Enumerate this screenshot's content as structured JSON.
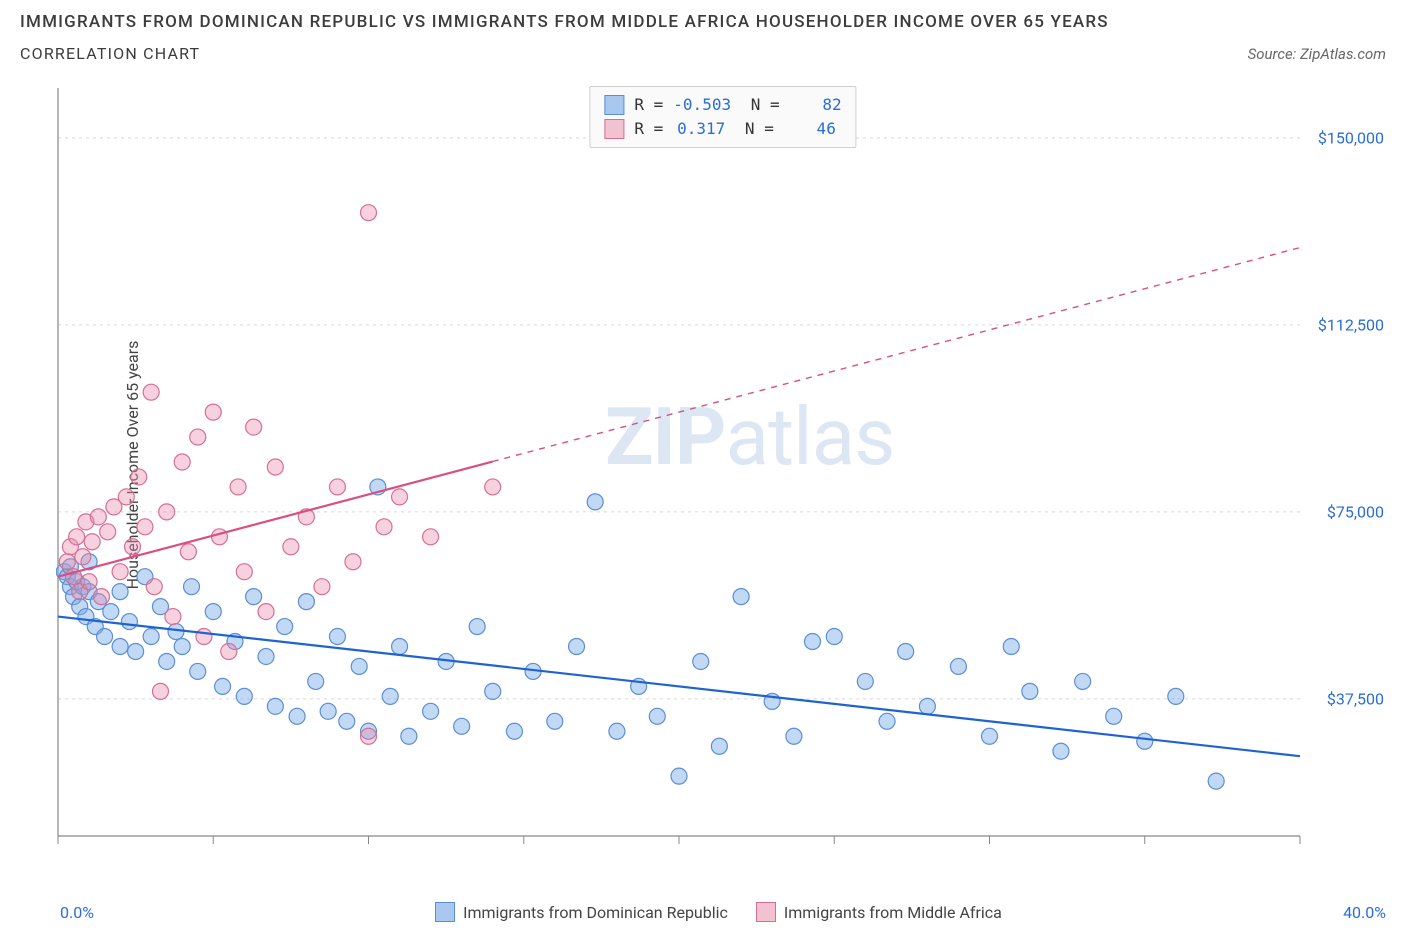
{
  "title": "IMMIGRANTS FROM DOMINICAN REPUBLIC VS IMMIGRANTS FROM MIDDLE AFRICA HOUSEHOLDER INCOME OVER 65 YEARS",
  "subtitle": "CORRELATION CHART",
  "source_label": "Source:",
  "source_value": "ZipAtlas.com",
  "watermark_bold": "ZIP",
  "watermark_rest": "atlas",
  "y_axis_label": "Householder Income Over 65 years",
  "chart": {
    "type": "scatter",
    "background_color": "#ffffff",
    "grid_color": "#d8d8d8",
    "axis_color": "#888888",
    "xlim": [
      0,
      40
    ],
    "ylim": [
      10000,
      160000
    ],
    "x_min_label": "0.0%",
    "x_max_label": "40.0%",
    "x_ticks": [
      0,
      5,
      10,
      15,
      20,
      25,
      30,
      35,
      40
    ],
    "y_ticks": [
      {
        "v": 37500,
        "label": "$37,500"
      },
      {
        "v": 75000,
        "label": "$75,000"
      },
      {
        "v": 112500,
        "label": "$112,500"
      },
      {
        "v": 150000,
        "label": "$150,000"
      }
    ],
    "marker_radius": 8,
    "marker_stroke_width": 1.2,
    "trend_line_width": 2.2,
    "trend_dash": "6 6",
    "series": [
      {
        "id": "dominican",
        "name": "Immigrants from Dominican Republic",
        "fill": "rgba(120,170,235,0.45)",
        "stroke": "#5b8ed3",
        "swatch_fill": "#a9c8ef",
        "swatch_border": "#5b8ed3",
        "trend_color": "#1f63d0",
        "R": "-0.503",
        "N": "82",
        "trend_x_range": [
          0,
          40
        ],
        "trend_y_range": [
          54000,
          26000
        ],
        "trend_solid_until": 40,
        "points": [
          [
            0.2,
            63000
          ],
          [
            0.3,
            62000
          ],
          [
            0.4,
            60000
          ],
          [
            0.4,
            64000
          ],
          [
            0.5,
            58000
          ],
          [
            0.6,
            61000
          ],
          [
            0.7,
            56000
          ],
          [
            0.8,
            60000
          ],
          [
            0.9,
            54000
          ],
          [
            1.0,
            59000
          ],
          [
            1.0,
            65000
          ],
          [
            1.2,
            52000
          ],
          [
            1.3,
            57000
          ],
          [
            1.5,
            50000
          ],
          [
            1.7,
            55000
          ],
          [
            2.0,
            48000
          ],
          [
            2.0,
            59000
          ],
          [
            2.3,
            53000
          ],
          [
            2.5,
            47000
          ],
          [
            2.8,
            62000
          ],
          [
            3.0,
            50000
          ],
          [
            3.3,
            56000
          ],
          [
            3.5,
            45000
          ],
          [
            3.8,
            51000
          ],
          [
            4.0,
            48000
          ],
          [
            4.3,
            60000
          ],
          [
            4.5,
            43000
          ],
          [
            5.0,
            55000
          ],
          [
            5.3,
            40000
          ],
          [
            5.7,
            49000
          ],
          [
            6.0,
            38000
          ],
          [
            6.3,
            58000
          ],
          [
            6.7,
            46000
          ],
          [
            7.0,
            36000
          ],
          [
            7.3,
            52000
          ],
          [
            7.7,
            34000
          ],
          [
            8.0,
            57000
          ],
          [
            8.3,
            41000
          ],
          [
            8.7,
            35000
          ],
          [
            9.0,
            50000
          ],
          [
            9.3,
            33000
          ],
          [
            9.7,
            44000
          ],
          [
            10.0,
            31000
          ],
          [
            10.3,
            80000
          ],
          [
            10.7,
            38000
          ],
          [
            11.0,
            48000
          ],
          [
            11.3,
            30000
          ],
          [
            12.0,
            35000
          ],
          [
            12.5,
            45000
          ],
          [
            13.0,
            32000
          ],
          [
            13.5,
            52000
          ],
          [
            14.0,
            39000
          ],
          [
            14.7,
            31000
          ],
          [
            15.3,
            43000
          ],
          [
            16.0,
            33000
          ],
          [
            16.7,
            48000
          ],
          [
            17.3,
            77000
          ],
          [
            18.0,
            31000
          ],
          [
            18.7,
            40000
          ],
          [
            19.3,
            34000
          ],
          [
            20.0,
            22000
          ],
          [
            20.7,
            45000
          ],
          [
            21.3,
            28000
          ],
          [
            22.0,
            58000
          ],
          [
            23.0,
            37000
          ],
          [
            23.7,
            30000
          ],
          [
            24.3,
            49000
          ],
          [
            25.0,
            50000
          ],
          [
            26.0,
            41000
          ],
          [
            26.7,
            33000
          ],
          [
            27.3,
            47000
          ],
          [
            28.0,
            36000
          ],
          [
            29.0,
            44000
          ],
          [
            30.0,
            30000
          ],
          [
            30.7,
            48000
          ],
          [
            31.3,
            39000
          ],
          [
            32.3,
            27000
          ],
          [
            33.0,
            41000
          ],
          [
            34.0,
            34000
          ],
          [
            35.0,
            29000
          ],
          [
            36.0,
            38000
          ],
          [
            37.3,
            21000
          ]
        ]
      },
      {
        "id": "middle_africa",
        "name": "Immigrants from Middle Africa",
        "fill": "rgba(235,140,170,0.40)",
        "stroke": "#d66f96",
        "swatch_fill": "#f2c2d1",
        "swatch_border": "#d66f96",
        "trend_color": "#d94f7f",
        "R": "0.317",
        "N": "46",
        "trend_x_range": [
          0,
          40
        ],
        "trend_y_range": [
          62000,
          128000
        ],
        "trend_solid_until": 14,
        "points": [
          [
            0.3,
            65000
          ],
          [
            0.4,
            68000
          ],
          [
            0.5,
            62000
          ],
          [
            0.6,
            70000
          ],
          [
            0.7,
            59000
          ],
          [
            0.8,
            66000
          ],
          [
            0.9,
            73000
          ],
          [
            1.0,
            61000
          ],
          [
            1.1,
            69000
          ],
          [
            1.3,
            74000
          ],
          [
            1.4,
            58000
          ],
          [
            1.6,
            71000
          ],
          [
            1.8,
            76000
          ],
          [
            2.0,
            63000
          ],
          [
            2.2,
            78000
          ],
          [
            2.4,
            68000
          ],
          [
            2.6,
            82000
          ],
          [
            2.8,
            72000
          ],
          [
            3.0,
            99000
          ],
          [
            3.1,
            60000
          ],
          [
            3.3,
            39000
          ],
          [
            3.5,
            75000
          ],
          [
            3.7,
            54000
          ],
          [
            4.0,
            85000
          ],
          [
            4.2,
            67000
          ],
          [
            4.5,
            90000
          ],
          [
            4.7,
            50000
          ],
          [
            5.0,
            95000
          ],
          [
            5.2,
            70000
          ],
          [
            5.5,
            47000
          ],
          [
            5.8,
            80000
          ],
          [
            6.0,
            63000
          ],
          [
            6.3,
            92000
          ],
          [
            6.7,
            55000
          ],
          [
            7.0,
            84000
          ],
          [
            7.5,
            68000
          ],
          [
            8.0,
            74000
          ],
          [
            8.5,
            60000
          ],
          [
            9.0,
            80000
          ],
          [
            9.5,
            65000
          ],
          [
            10.0,
            30000
          ],
          [
            10.0,
            135000
          ],
          [
            10.5,
            72000
          ],
          [
            11.0,
            78000
          ],
          [
            12.0,
            70000
          ],
          [
            14.0,
            80000
          ]
        ]
      }
    ]
  }
}
